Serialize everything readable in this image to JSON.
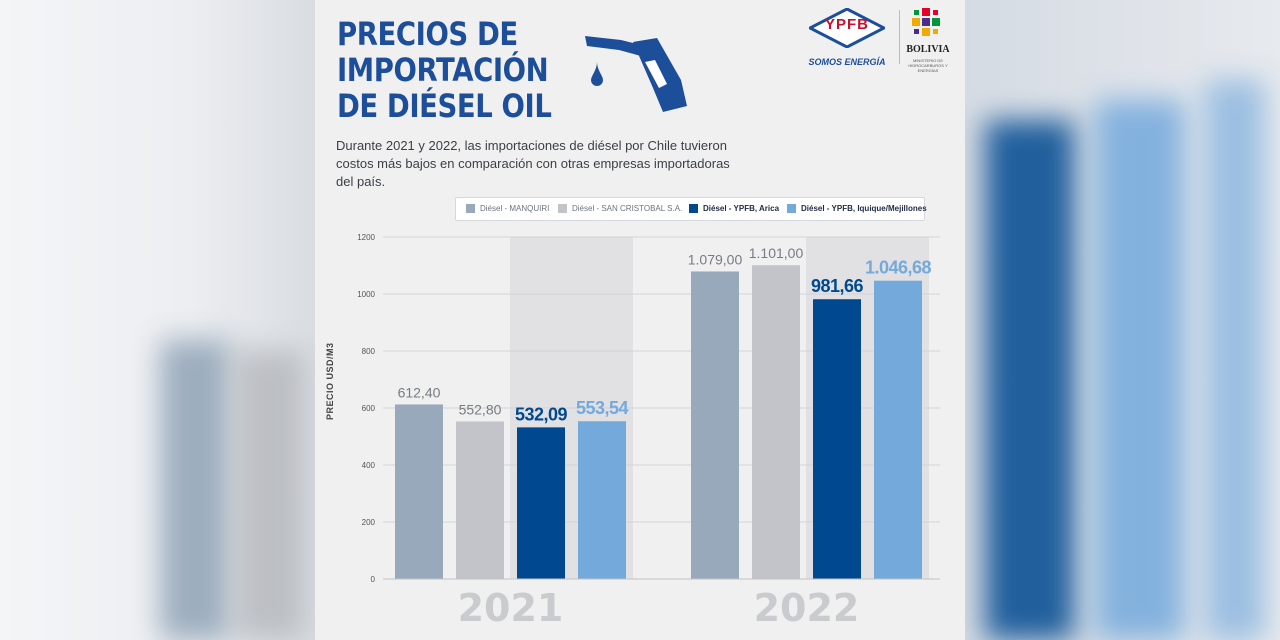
{
  "title_lines": [
    "PRECIOS DE",
    "IMPORTACIÓN",
    "DE DIÉSEL OIL"
  ],
  "subtitle": "Durante 2021 y 2022, las importaciones de diésel por Chile tuvieron costos más bajos en comparación con otras empresas importadoras del país.",
  "logos": {
    "ypfb": "YPFB",
    "ypfb_tagline": "SOMOS ENERGÍA",
    "bolivia": "BOLIVIA",
    "bolivia_sub": "MINISTERIO DE HIDROCARBUROS Y ENERGÍAS"
  },
  "colors": {
    "title": "#1d4e9a",
    "manquiri": "#98a9bb",
    "san_cristobal": "#c2c4c9",
    "ypfb_arica": "#004990",
    "ypfb_iquique": "#74a9dc",
    "highlight_band": "#e1e1e3",
    "year_label": "#c9cbce"
  },
  "chart_data": {
    "type": "bar",
    "categories": [
      "2021",
      "2022"
    ],
    "ylabel": "PRECIO USD/M3",
    "ylim": [
      0,
      1200
    ],
    "yticks": [
      0,
      200,
      400,
      600,
      800,
      1000,
      1200
    ],
    "grid": true,
    "legend_position": "top",
    "series": [
      {
        "name": "Diésel - MANQUIRI",
        "color_key": "manquiri",
        "values": [
          612.4,
          1079.0
        ],
        "labels": [
          "612,40",
          "1.079,00"
        ],
        "emphasis": false
      },
      {
        "name": "Diésel - SAN CRISTOBAL S.A.",
        "color_key": "san_cristobal",
        "values": [
          552.8,
          1101.0
        ],
        "labels": [
          "552,80",
          "1.101,00"
        ],
        "emphasis": false
      },
      {
        "name": "Diésel - YPFB, Arica",
        "color_key": "ypfb_arica",
        "values": [
          532.09,
          981.66
        ],
        "labels": [
          "532,09",
          "981,66"
        ],
        "emphasis": true
      },
      {
        "name": "Diésel - YPFB, Iquique/Mejillones",
        "color_key": "ypfb_iquique",
        "values": [
          553.54,
          1046.68
        ],
        "labels": [
          "553,54",
          "1.046,68"
        ],
        "emphasis": true
      }
    ]
  }
}
